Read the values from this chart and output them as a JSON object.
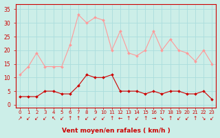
{
  "hours": [
    0,
    1,
    2,
    3,
    4,
    5,
    6,
    7,
    8,
    9,
    10,
    11,
    12,
    13,
    14,
    15,
    16,
    17,
    18,
    19,
    20,
    21,
    22,
    23
  ],
  "rafales": [
    11,
    14,
    19,
    14,
    14,
    14,
    22,
    33,
    30,
    32,
    31,
    20,
    27,
    19,
    18,
    20,
    27,
    20,
    24,
    20,
    19,
    16,
    20,
    15
  ],
  "moyen": [
    3,
    3,
    3,
    5,
    5,
    4,
    4,
    7,
    11,
    10,
    10,
    11,
    5,
    5,
    5,
    4,
    5,
    4,
    5,
    5,
    4,
    4,
    5,
    2
  ],
  "bg_color": "#cceee8",
  "grid_color": "#aadddd",
  "line_color_rafales": "#ff9999",
  "line_color_moyen": "#cc0000",
  "xlabel": "Vent moyen/en rafales ( km/h )",
  "ylim": [
    -1,
    37
  ],
  "yticks": [
    0,
    5,
    10,
    15,
    20,
    25,
    30,
    35
  ],
  "axis_color": "#cc0000",
  "tick_color": "#cc0000",
  "wind_arrows": [
    "↗",
    "↙",
    "↙",
    "↙",
    "↖",
    "↙",
    "↑",
    "↑",
    "↙",
    "↙",
    "↙",
    "↑",
    "←",
    "↑",
    "↙",
    "↑",
    "→",
    "↘",
    "↑",
    "↙",
    "↙",
    "↑",
    "↘",
    "↙"
  ]
}
